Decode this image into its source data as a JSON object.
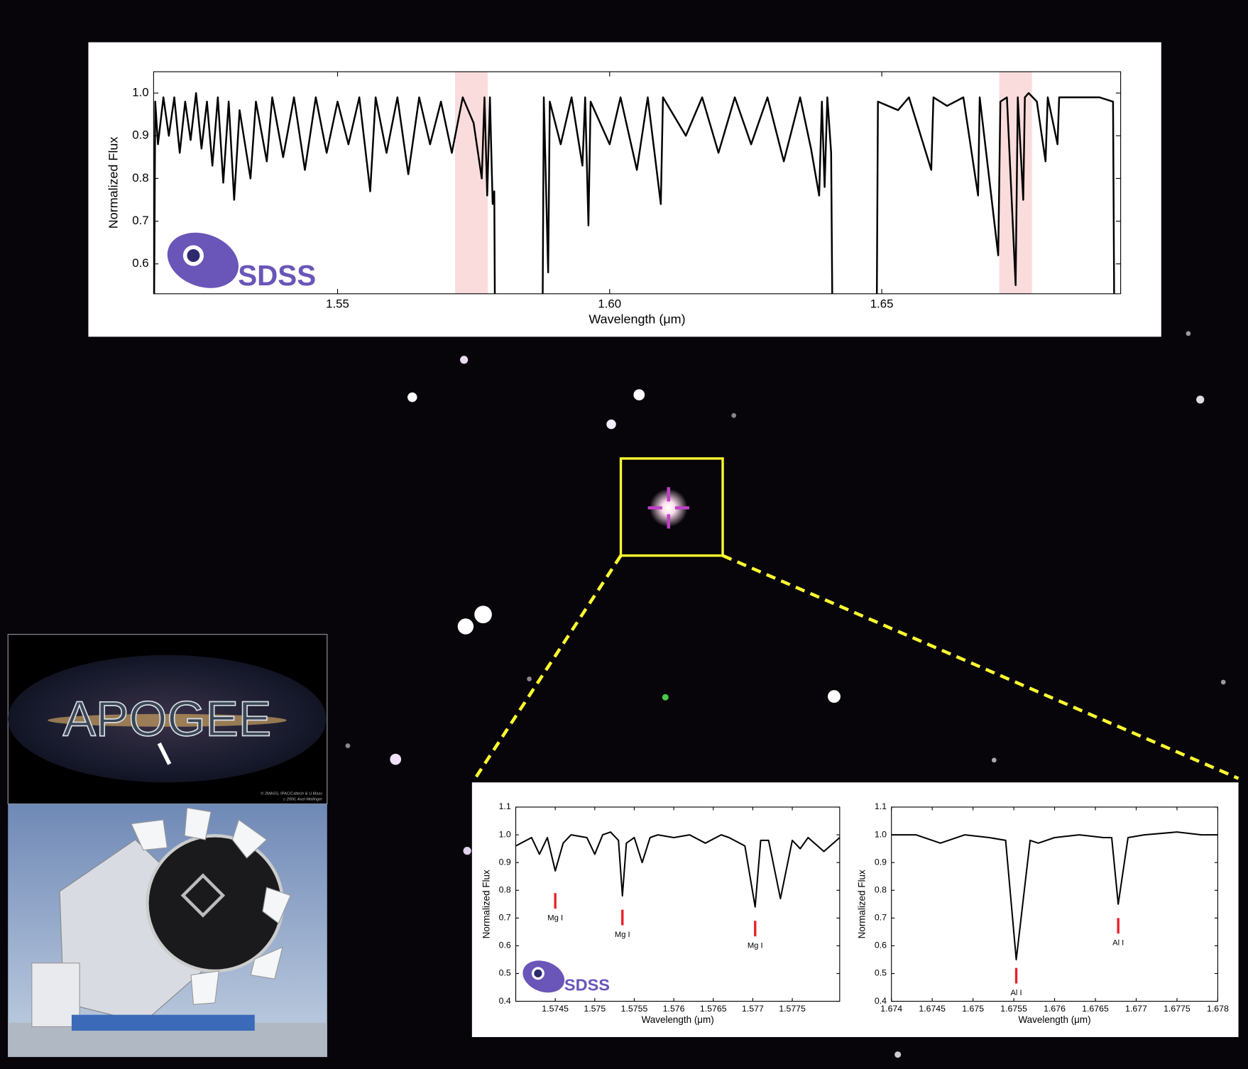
{
  "chart_data": [
    {
      "type": "line",
      "x_label": "Wavelength (μm)",
      "y_label": "Normalized Flux",
      "color": "#000000",
      "x": [
        1.5163,
        1.5165,
        1.517,
        1.518,
        1.519,
        1.52,
        1.521,
        1.522,
        1.523,
        1.524,
        1.525,
        1.526,
        1.527,
        1.528,
        1.529,
        1.53,
        1.531,
        1.532,
        1.534,
        1.535,
        1.537,
        1.538,
        1.54,
        1.542,
        1.544,
        1.546,
        1.548,
        1.55,
        1.552,
        1.554,
        1.556,
        1.557,
        1.559,
        1.561,
        1.563,
        1.565,
        1.567,
        1.569,
        1.571,
        1.573,
        1.575,
        1.5765,
        1.577,
        1.5775,
        1.578,
        1.5785,
        1.5788,
        1.5789,
        1.5833,
        1.5877,
        1.5879,
        1.5887,
        1.589,
        1.591,
        1.593,
        1.595,
        1.5955,
        1.5961,
        1.5965,
        1.6,
        1.602,
        1.605,
        1.607,
        1.6094,
        1.6098,
        1.614,
        1.617,
        1.62,
        1.623,
        1.626,
        1.629,
        1.632,
        1.635,
        1.637,
        1.6385,
        1.639,
        1.6395,
        1.64,
        1.6407,
        1.6409,
        1.645,
        1.6491,
        1.6493,
        1.653,
        1.655,
        1.6591,
        1.6595,
        1.662,
        1.665,
        1.6677,
        1.668,
        1.6714,
        1.6718,
        1.673,
        1.6746,
        1.675,
        1.676,
        1.6763,
        1.677,
        1.6785,
        1.6801,
        1.6805,
        1.6823,
        1.6826,
        1.686,
        1.69,
        1.6925,
        1.6927
      ],
      "values": [
        0.53,
        0.98,
        0.88,
        0.99,
        0.9,
        0.99,
        0.86,
        0.98,
        0.89,
        1.0,
        0.87,
        0.98,
        0.83,
        0.99,
        0.79,
        0.98,
        0.75,
        0.96,
        0.8,
        0.98,
        0.84,
        0.99,
        0.85,
        0.99,
        0.82,
        0.99,
        0.86,
        0.98,
        0.88,
        0.99,
        0.77,
        0.99,
        0.86,
        0.99,
        0.81,
        0.99,
        0.88,
        0.98,
        0.86,
        0.99,
        0.93,
        0.8,
        0.99,
        0.76,
        0.99,
        0.74,
        0.77,
        0.53,
        null,
        0.53,
        0.99,
        0.58,
        0.98,
        0.88,
        0.99,
        0.83,
        0.99,
        0.69,
        0.98,
        0.88,
        0.99,
        0.82,
        0.99,
        0.74,
        0.99,
        0.9,
        0.99,
        0.86,
        0.99,
        0.88,
        0.99,
        0.84,
        0.99,
        0.87,
        0.76,
        0.98,
        0.78,
        0.99,
        0.86,
        0.53,
        null,
        0.53,
        0.98,
        0.96,
        0.99,
        0.82,
        0.99,
        0.97,
        0.99,
        0.76,
        0.99,
        0.62,
        0.98,
        0.99,
        0.55,
        0.99,
        0.75,
        0.99,
        1.0,
        0.98,
        0.84,
        0.99,
        0.88,
        0.99,
        0.99,
        0.99,
        0.98,
        0.53
      ],
      "xlim": [
        1.5162,
        1.6939
      ],
      "ylim": [
        0.53,
        1.05
      ],
      "xticks": [
        1.55,
        {
          "value": 1.6,
          "label": "1.60"
        },
        1.65
      ],
      "yticks": [
        0.6,
        0.7,
        0.8,
        0.9,
        {
          "value": 1.0,
          "label": "1.0"
        }
      ],
      "highlights": [
        [
          1.5716,
          1.5776
        ],
        [
          1.6716,
          1.6776
        ]
      ],
      "highlight_color": "#fadcdc"
    },
    {
      "type": "line",
      "x_label": "Wavelength (μm)",
      "y_label": "Normalized Flux",
      "color": "#000000",
      "x": [
        1.574,
        1.5742,
        1.5743,
        1.5744,
        1.5745,
        1.5746,
        1.5747,
        1.5749,
        1.575,
        1.5751,
        1.5752,
        1.5753,
        1.57535,
        1.5754,
        1.5755,
        1.5756,
        1.5757,
        1.5758,
        1.576,
        1.5762,
        1.5764,
        1.5766,
        1.5767,
        1.5769,
        1.57703,
        1.5771,
        1.5772,
        1.57735,
        1.5775,
        1.5776,
        1.5777,
        1.5779,
        1.5781
      ],
      "values": [
        0.96,
        0.99,
        0.93,
        0.99,
        0.87,
        0.97,
        1.0,
        0.99,
        0.93,
        1.0,
        1.01,
        0.98,
        0.78,
        0.97,
        0.99,
        0.9,
        0.99,
        1.0,
        0.99,
        1.0,
        0.97,
        1.0,
        0.99,
        0.96,
        0.74,
        0.98,
        0.98,
        0.77,
        0.98,
        0.95,
        0.99,
        0.94,
        0.99
      ],
      "xlim": [
        1.574,
        1.5781
      ],
      "ylim": [
        0.4,
        1.1
      ],
      "xticks": [
        1.5745,
        1.575,
        1.5755,
        1.576,
        1.5765,
        1.577,
        1.5775
      ],
      "yticks": [
        0.4,
        0.5,
        0.6,
        0.7,
        0.8,
        0.9,
        {
          "value": 1.0,
          "label": "1.0"
        },
        1.1
      ],
      "annotations": [
        {
          "label": "Mg I",
          "x": 1.5745,
          "y": 0.79
        },
        {
          "label": "Mg I",
          "x": 1.57535,
          "y": 0.73
        },
        {
          "label": "Mg I",
          "x": 1.57703,
          "y": 0.69
        }
      ],
      "annotation_color": "#e8202a"
    },
    {
      "type": "line",
      "x_label": "Wavelength (μm)",
      "y_label": "Normalized Flux",
      "color": "#000000",
      "x": [
        1.674,
        1.6743,
        1.6746,
        1.6749,
        1.6752,
        1.6754,
        1.67553,
        1.6757,
        1.6758,
        1.676,
        1.6763,
        1.6766,
        1.6767,
        1.67678,
        1.6769,
        1.6771,
        1.6775,
        1.6778,
        1.678
      ],
      "values": [
        1.0,
        1.0,
        0.97,
        1.0,
        0.99,
        0.98,
        0.55,
        0.98,
        0.97,
        0.99,
        1.0,
        0.99,
        0.99,
        0.75,
        0.99,
        1.0,
        1.01,
        1.0,
        1.0
      ],
      "xlim": [
        1.674,
        1.678
      ],
      "ylim": [
        0.4,
        1.1
      ],
      "xticks": [
        1.674,
        1.6745,
        1.675,
        1.6755,
        1.676,
        1.6765,
        1.677,
        1.6775,
        1.678
      ],
      "yticks": [
        0.4,
        0.5,
        0.6,
        0.7,
        0.8,
        0.9,
        {
          "value": 1.0,
          "label": "1.0"
        },
        1.1
      ],
      "annotations": [
        {
          "label": "Al I",
          "x": 1.67553,
          "y": 0.52
        },
        {
          "label": "Al I",
          "x": 1.67678,
          "y": 0.7
        }
      ],
      "annotation_color": "#e8202a"
    }
  ],
  "logos": {
    "sdss": "SDSS",
    "apogee": "APOGEE"
  },
  "credits": [
    "© 2MASS, IPAC/Caltech & U.Mass",
    "c 2000, Axel Mellinger"
  ]
}
